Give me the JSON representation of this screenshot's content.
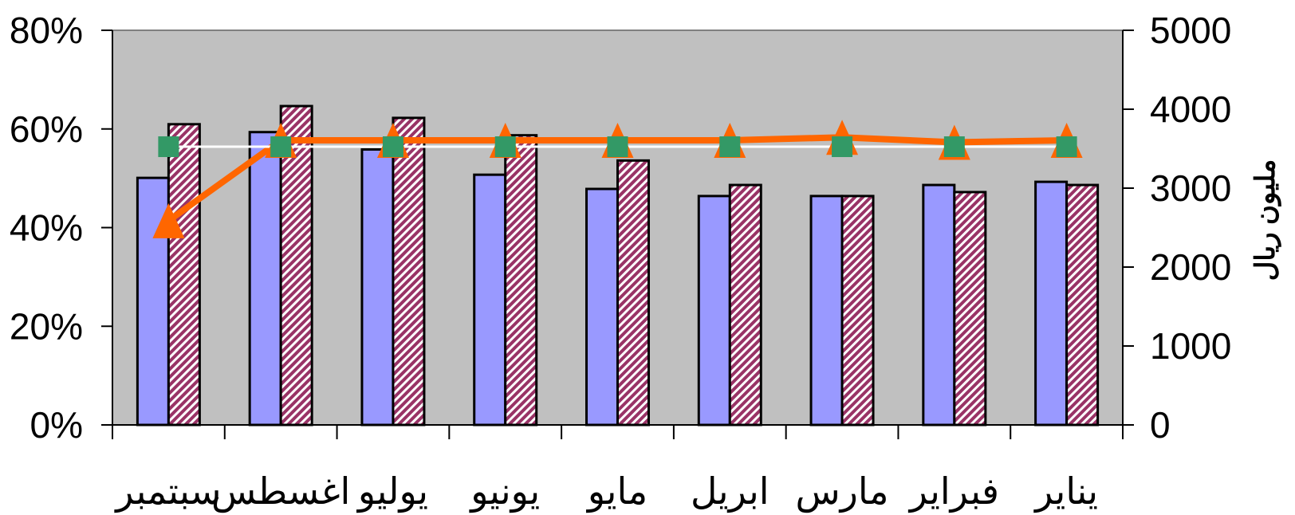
{
  "chart_data": {
    "type": "bar",
    "categories_rtl": true,
    "categories": [
      "يناير",
      "فبراير",
      "مارس",
      "ابريل",
      "مايو",
      "يونيو",
      "يوليو",
      "اغسطس",
      "سبتمبر"
    ],
    "left_axis": {
      "ylim": [
        0,
        80
      ],
      "ticks": [
        "0%",
        "20%",
        "40%",
        "60%",
        "80%"
      ]
    },
    "right_axis": {
      "ylim": [
        0,
        5000
      ],
      "ticks": [
        "0",
        "1000",
        "2000",
        "3000",
        "4000",
        "5000"
      ],
      "label": "مليون ريال"
    },
    "bar_series": [
      {
        "values": [
          3080,
          3040,
          2900,
          2900,
          2990,
          3170,
          3490,
          3710,
          3130
        ],
        "color": "#9999ff",
        "pattern": "solid"
      },
      {
        "values": [
          3040,
          2950,
          2900,
          3040,
          3350,
          3670,
          3890,
          4040,
          3810
        ],
        "color": "#993366",
        "pattern": "diagonal-hatch"
      }
    ],
    "line_series": [
      {
        "axis": "left",
        "values": [
          57.7,
          57.3,
          58.3,
          57.7,
          57.7,
          57.7,
          57.7,
          57.7,
          41.4
        ],
        "color": "#ff6600",
        "marker": "triangle"
      },
      {
        "axis": "left",
        "values": [
          56.4,
          56.4,
          56.4,
          56.4,
          56.4,
          56.4,
          56.4,
          56.4,
          56.4
        ],
        "color": "#ffffff",
        "marker": "square",
        "marker_color": "#339966"
      }
    ],
    "plot_background": "#c0c0c0",
    "grid": false,
    "legend": "none"
  }
}
